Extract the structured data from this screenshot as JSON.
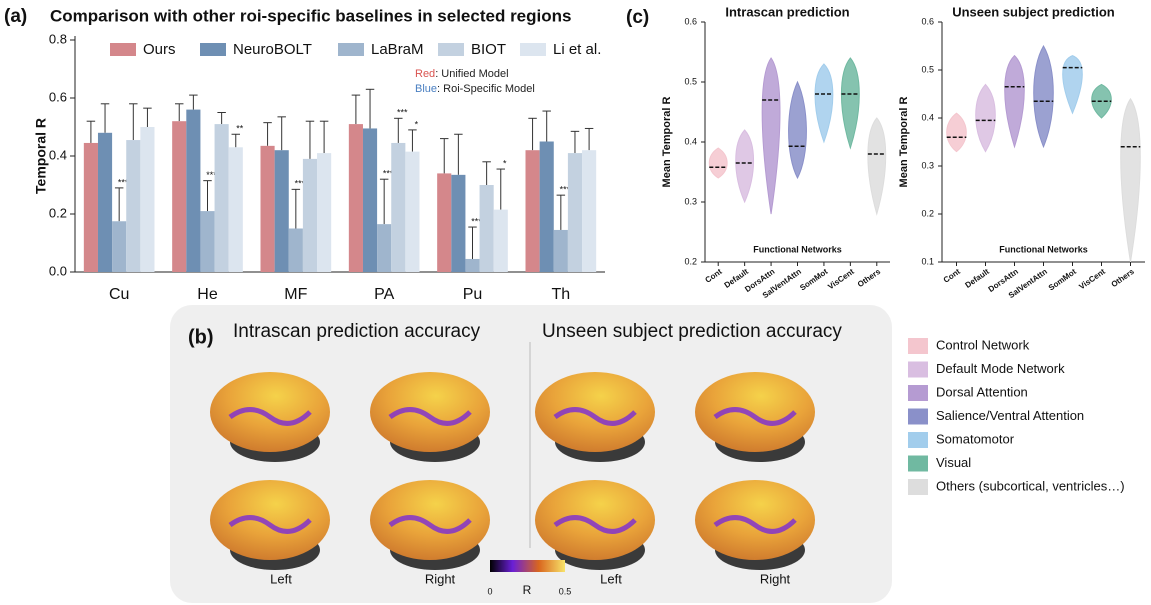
{
  "chart_data": [
    {
      "type": "bar",
      "panel_label": "(a)",
      "title": "Comparison with other roi-specific baselines in selected regions",
      "y_label": "Temporal R",
      "categories": [
        "Cu",
        "He",
        "MF",
        "PA",
        "Pu",
        "Th"
      ],
      "series": [
        {
          "name": "Ours",
          "color": "#d4878b",
          "values": [
            0.445,
            0.52,
            0.435,
            0.51,
            0.34,
            0.42
          ],
          "errors": [
            0.075,
            0.06,
            0.08,
            0.1,
            0.12,
            0.11
          ],
          "significance": [
            null,
            null,
            null,
            null,
            null,
            null
          ]
        },
        {
          "name": "NeuroBOLT",
          "color": "#6e8fb3",
          "values": [
            0.48,
            0.56,
            0.42,
            0.495,
            0.335,
            0.45
          ],
          "errors": [
            0.1,
            0.05,
            0.115,
            0.135,
            0.14,
            0.105
          ],
          "significance": [
            null,
            null,
            null,
            null,
            null,
            null
          ]
        },
        {
          "name": "LaBraM",
          "color": "#9fb5cd",
          "values": [
            0.175,
            0.21,
            0.15,
            0.165,
            0.045,
            0.145
          ],
          "errors": [
            0.115,
            0.105,
            0.135,
            0.155,
            0.11,
            0.12
          ],
          "significance": [
            "***",
            "***",
            "***",
            "***",
            "***",
            "***"
          ]
        },
        {
          "name": "BIOT",
          "color": "#c3d1e0",
          "values": [
            0.455,
            0.51,
            0.39,
            0.445,
            0.3,
            0.41
          ],
          "errors": [
            0.125,
            0.04,
            0.13,
            0.085,
            0.08,
            0.075
          ],
          "significance": [
            null,
            null,
            null,
            "***",
            null,
            null
          ]
        },
        {
          "name": "Li et al.",
          "color": "#dce5ef",
          "values": [
            0.5,
            0.43,
            0.41,
            0.415,
            0.215,
            0.42
          ],
          "errors": [
            0.065,
            0.045,
            0.11,
            0.075,
            0.14,
            0.075
          ],
          "significance": [
            null,
            "**",
            null,
            "*",
            "*",
            null
          ]
        }
      ],
      "notes": [
        {
          "key": "Red",
          "key_color": "#d9534f",
          "text": ": Unified Model"
        },
        {
          "key": "Blue",
          "key_color": "#4a7fc1",
          "text": ": Roi-Specific Model"
        }
      ],
      "ylim": [
        0,
        0.8
      ],
      "yticks": [
        {
          "value": 0,
          "label": "0.0"
        },
        0.2,
        0.4,
        0.6,
        0.8
      ]
    },
    {
      "type": "violin",
      "panel_label": "(c)",
      "title": "Intrascan prediction",
      "y_label": "Mean Temporal R",
      "x_label": "Functional Networks",
      "categories": [
        "Cont",
        "Default",
        "DorsAttn",
        "SalVentAttn",
        "SomMot",
        "VisCent",
        "Others"
      ],
      "colors": [
        "#f4c6ce",
        "#d9bee1",
        "#b59bd2",
        "#8a90c9",
        "#a2cdec",
        "#70b9a1",
        "#dddddd"
      ],
      "medians": [
        0.358,
        0.365,
        0.47,
        0.393,
        0.48,
        0.48,
        0.38
      ],
      "mins": [
        0.34,
        0.3,
        0.28,
        0.34,
        0.4,
        0.39,
        0.28
      ],
      "maxs": [
        0.39,
        0.42,
        0.54,
        0.5,
        0.53,
        0.54,
        0.44
      ],
      "ylim": [
        0.2,
        0.6
      ],
      "yticks": [
        0.2,
        0.3,
        0.4,
        0.5,
        0.6
      ]
    },
    {
      "type": "violin",
      "title": "Unseen subject prediction",
      "y_label": "Mean Temporal R",
      "x_label": "Functional Networks",
      "categories": [
        "Cont",
        "Default",
        "DorsAttn",
        "SalVentAttn",
        "SomMot",
        "VisCent",
        "Others"
      ],
      "colors": [
        "#f4c6ce",
        "#d9bee1",
        "#b59bd2",
        "#8a90c9",
        "#a2cdec",
        "#70b9a1",
        "#dddddd"
      ],
      "medians": [
        0.36,
        0.395,
        0.465,
        0.435,
        0.505,
        0.435,
        0.34
      ],
      "mins": [
        0.33,
        0.33,
        0.34,
        0.34,
        0.41,
        0.4,
        0.1
      ],
      "maxs": [
        0.41,
        0.47,
        0.53,
        0.55,
        0.53,
        0.47,
        0.44
      ],
      "ylim": [
        0.1,
        0.6
      ],
      "yticks": [
        0.1,
        0.2,
        0.3,
        0.4,
        0.5,
        0.6
      ]
    }
  ],
  "brain_panel": {
    "panel_label": "(b)",
    "titles": [
      "Intrascan prediction accuracy",
      "Unseen subject prediction accuracy"
    ],
    "side_labels": [
      "Left",
      "Right",
      "Left",
      "Right"
    ],
    "colorbar": {
      "label": "R",
      "ticks": [
        0,
        0.5
      ]
    }
  },
  "network_legend": [
    {
      "label": "Control Network",
      "color": "#f4c6ce"
    },
    {
      "label": "Default Mode Network",
      "color": "#d9bee1"
    },
    {
      "label": "Dorsal Attention",
      "color": "#b59bd2"
    },
    {
      "label": "Salience/Ventral Attention",
      "color": "#8a90c9"
    },
    {
      "label": "Somatomotor",
      "color": "#a2cdec"
    },
    {
      "label": "Visual",
      "color": "#70b9a1"
    },
    {
      "label": "Others (subcortical, ventricles…)",
      "color": "#dddddd"
    }
  ]
}
